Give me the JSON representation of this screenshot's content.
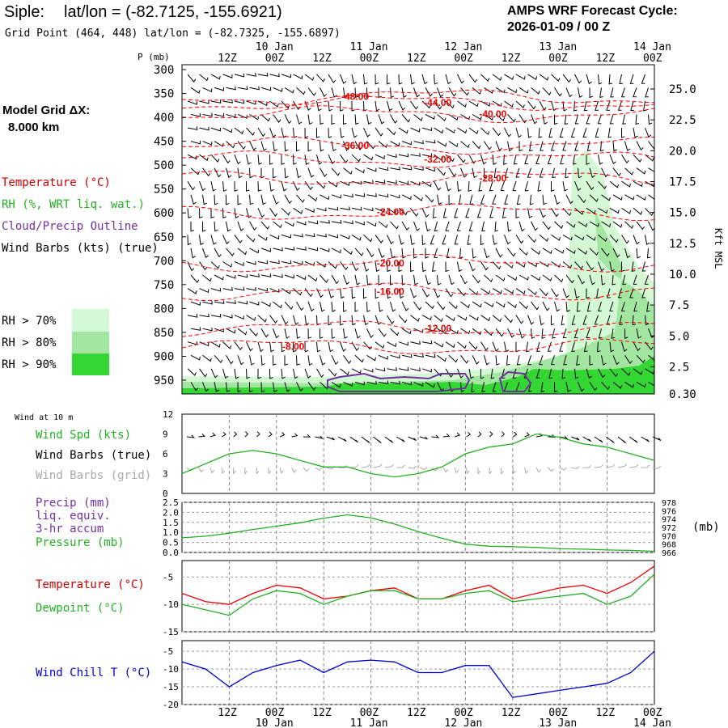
{
  "header": {
    "station": "Siple:",
    "latlon": "lat/lon = (-82.7125, -155.6921)",
    "grid_point": "Grid Point (464, 448) lat/lon = (-82.7325, -155.6897)",
    "model_title": "AMPS WRF Forecast Cycle:",
    "cycle": "2026-01-09 / 00  Z"
  },
  "legend": {
    "model_grid": "Model Grid ΔX:",
    "resolution": "8.000 km",
    "temperature": "Temperature (°C)",
    "rh": "RH (%, WRT liq. wat.)",
    "cloud": "Cloud/Precip Outline",
    "wind_barbs": "Wind Barbs (kts) (true)",
    "rh70": "RH > 70%",
    "rh80": "RH > 80%",
    "rh90": "RH > 90%"
  },
  "colors": {
    "temp": "#ff0000",
    "rh": "#2cb82c",
    "cloud": "#7030a0",
    "pressure": "#22b022",
    "windchill": "#0000cc",
    "rh70": "#d4f7d4",
    "rh80": "#a2e6a2",
    "rh90": "#33d633"
  },
  "time_axis": {
    "top_row": [
      "12Z",
      "00Z",
      "12Z",
      "00Z",
      "12Z",
      "00Z",
      "12Z",
      "00Z",
      "12Z",
      "00Z"
    ],
    "date_labels": [
      "10 Jan",
      "11 Jan",
      "12 Jan",
      "13 Jan",
      "14 Jan"
    ]
  },
  "chart_data": [
    {
      "type": "contour",
      "name": "cross-section",
      "ylabel": "P (mb)",
      "y2label": "Kft MSL",
      "pressure_levels": [
        300,
        350,
        400,
        450,
        500,
        550,
        600,
        650,
        700,
        750,
        800,
        850,
        900,
        950
      ],
      "kft_labels": [
        "25.0",
        "22.5",
        "20.0",
        "17.5",
        "15.0",
        "12.5",
        "10.0",
        "7.5",
        "5.0",
        "2.5",
        "0.30"
      ],
      "kft_values": [
        25,
        22.5,
        20,
        17.5,
        15,
        12.5,
        10,
        7.5,
        5,
        2.5,
        0.3
      ],
      "isotherms": [
        {
          "label": "-48.00",
          "t_hr": 45,
          "p": 357
        },
        {
          "label": "-44.00",
          "t_hr": 66,
          "p": 369
        },
        {
          "label": "-40.00",
          "t_hr": 80,
          "p": 393
        },
        {
          "label": "-36.00",
          "t_hr": 45,
          "p": 459
        },
        {
          "label": "-32.00",
          "t_hr": 66,
          "p": 488
        },
        {
          "label": "-28.00",
          "t_hr": 80,
          "p": 528
        },
        {
          "label": "-24.00",
          "t_hr": 54,
          "p": 598
        },
        {
          "label": "-20.00",
          "t_hr": 54,
          "p": 705
        },
        {
          "label": "-16.00",
          "t_hr": 54,
          "p": 765
        },
        {
          "label": "-12.00",
          "t_hr": 66,
          "p": 842
        },
        {
          "label": "-8.00",
          "t_hr": 30,
          "p": 880
        }
      ]
    },
    {
      "type": "line",
      "name": "wind",
      "title": "Wind at 10 m",
      "series_labels": [
        "Wind Spd (kts)",
        "Wind Barbs (true)",
        "Wind Barbs (grid)"
      ],
      "yticks": [
        "12",
        "9",
        "6",
        "3",
        "0"
      ],
      "ylim": [
        0,
        12
      ],
      "x": [
        0,
        6,
        12,
        18,
        24,
        30,
        36,
        42,
        48,
        54,
        60,
        66,
        72,
        78,
        84,
        90,
        96,
        102,
        108,
        114,
        120
      ],
      "series": [
        {
          "name": "Wind Spd",
          "values": [
            3,
            4.5,
            6,
            6.5,
            6,
            5,
            4,
            4,
            3,
            2.5,
            3,
            4,
            6,
            7,
            7.5,
            9,
            8.5,
            7.5,
            7,
            6,
            5
          ]
        }
      ]
    },
    {
      "type": "line",
      "name": "precip-pressure",
      "series_labels": [
        "Precip (mm)",
        "liq. equiv.",
        "3-hr accum",
        "Pressure (mb)"
      ],
      "yticks": [
        "2.5",
        "2.0",
        "1.5",
        "1.0",
        "0.5",
        "0.0"
      ],
      "y2ticks": [
        "978",
        "976",
        "974",
        "972",
        "970",
        "968",
        "966"
      ],
      "y2label": "(mb)",
      "ylim": [
        0,
        2.5
      ],
      "y2lim": [
        966,
        978
      ],
      "x": [
        0,
        6,
        12,
        18,
        24,
        30,
        36,
        42,
        48,
        54,
        60,
        66,
        72,
        78,
        84,
        90,
        96,
        102,
        108,
        114,
        120
      ],
      "series": [
        {
          "name": "Pressure",
          "values": [
            969.5,
            969.9,
            970.6,
            971.5,
            972.3,
            973.1,
            974.2,
            975.0,
            974.3,
            972.8,
            971.0,
            969.4,
            968.0,
            967.5,
            967.4,
            967.2,
            966.9,
            966.8,
            966.6,
            966.5,
            966.3
          ]
        }
      ]
    },
    {
      "type": "line",
      "name": "temperature",
      "series_labels": [
        "Temperature (°C)",
        "Dewpoint (°C)"
      ],
      "yticks": [
        "-5",
        "-10",
        "-15"
      ],
      "ylim": [
        -15,
        -2
      ],
      "x": [
        0,
        6,
        12,
        18,
        24,
        30,
        36,
        42,
        48,
        54,
        60,
        66,
        72,
        78,
        84,
        90,
        96,
        102,
        108,
        114,
        120
      ],
      "series": [
        {
          "name": "Temperature",
          "values": [
            -8,
            -9.5,
            -10,
            -8,
            -6.5,
            -7,
            -9,
            -8.5,
            -7.5,
            -7,
            -9,
            -9,
            -7.5,
            -6.5,
            -9,
            -8,
            -7,
            -6.5,
            -8,
            -6,
            -3
          ]
        },
        {
          "name": "Dewpoint",
          "values": [
            -10,
            -11,
            -12,
            -9,
            -7.5,
            -8,
            -10,
            -8.5,
            -7.5,
            -7.5,
            -9,
            -9,
            -8,
            -7.5,
            -9.5,
            -9,
            -8.5,
            -8,
            -10,
            -8.5,
            -4.5
          ]
        }
      ]
    },
    {
      "type": "line",
      "name": "windchill",
      "series_labels": [
        "Wind Chill T (°C)"
      ],
      "yticks": [
        "-5",
        "-10",
        "-15",
        "-20"
      ],
      "ylim": [
        -20,
        -2
      ],
      "x": [
        0,
        6,
        12,
        18,
        24,
        30,
        36,
        42,
        48,
        54,
        60,
        66,
        72,
        78,
        84,
        90,
        96,
        102,
        108,
        114,
        120
      ],
      "series": [
        {
          "name": "Wind Chill",
          "values": [
            -8,
            -10,
            -15,
            -11,
            -9,
            -7.5,
            -11,
            -8,
            -7.5,
            -8,
            -11,
            -11,
            -9,
            -9,
            -18,
            -17,
            -16,
            -15,
            -14,
            -11,
            -5
          ]
        }
      ]
    }
  ]
}
